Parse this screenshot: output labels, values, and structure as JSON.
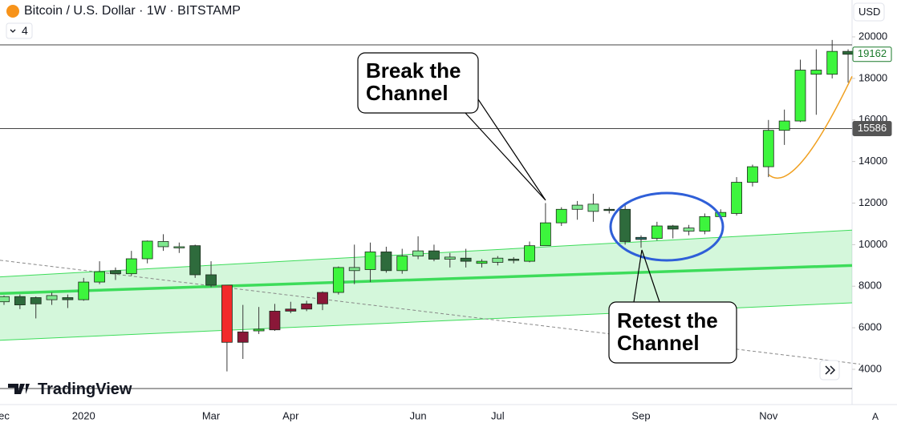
{
  "header": {
    "symbol": "Bitcoin / U.S. Dollar · 1W · BITSTAMP",
    "indicator_count": "4",
    "currency": "USD",
    "brand": "TradingView",
    "scale_mode": "A"
  },
  "chart_data": {
    "type": "candlestick",
    "title": "Bitcoin / U.S. Dollar · 1W · BITSTAMP",
    "categories": [
      "ec",
      null,
      null,
      null,
      null,
      "2020",
      null,
      null,
      null,
      null,
      null,
      null,
      null,
      "Mar",
      null,
      null,
      null,
      null,
      "Apr",
      null,
      null,
      null,
      null,
      null,
      null,
      null,
      "Jun",
      null,
      null,
      null,
      null,
      "Jul",
      null,
      null,
      null,
      null,
      null,
      null,
      null,
      null,
      "Sep",
      null,
      null,
      null,
      null,
      null,
      null,
      null,
      "Nov",
      null,
      null,
      null,
      null,
      null
    ],
    "open": [
      7250,
      7500,
      7450,
      7350,
      7450,
      7350,
      8200,
      8750,
      8600,
      9320,
      9900,
      9850,
      9950,
      8550,
      8050,
      5300,
      5850,
      5900,
      6800,
      6900,
      7150,
      7700,
      8750,
      8800,
      9650,
      8750,
      9450,
      9700,
      9300,
      9350,
      9100,
      9150,
      9300,
      9200,
      9950,
      11050,
      11700,
      11950,
      11700,
      11700,
      10250,
      10300,
      10900,
      10650,
      10650,
      11350,
      11500,
      13000,
      13750,
      15500,
      15950,
      18200,
      18200,
      19300
    ],
    "high": [
      7550,
      7600,
      7500,
      7700,
      7600,
      8400,
      9200,
      8900,
      9700,
      10200,
      10500,
      10100,
      10000,
      9200,
      8050,
      7100,
      7000,
      7150,
      7250,
      7300,
      7750,
      8950,
      10000,
      10100,
      9900,
      9800,
      10400,
      10000,
      9600,
      9800,
      9300,
      9450,
      9400,
      10150,
      12000,
      11800,
      12100,
      12450,
      11800,
      12000,
      10450,
      11100,
      10950,
      10950,
      11500,
      11700,
      13250,
      13850,
      16000,
      16500,
      18900,
      19400,
      19850,
      19400
    ],
    "low": [
      7100,
      6900,
      6450,
      7100,
      6950,
      7300,
      8100,
      8300,
      8500,
      9100,
      9700,
      9600,
      8400,
      7950,
      3900,
      4500,
      5700,
      5850,
      6700,
      6800,
      6850,
      7600,
      8100,
      8200,
      8650,
      8600,
      9300,
      9200,
      8900,
      8900,
      8900,
      9000,
      9100,
      9150,
      9950,
      10900,
      11200,
      11100,
      11500,
      10000,
      9850,
      10200,
      10300,
      10450,
      10500,
      11200,
      11400,
      12800,
      13250,
      14800,
      15900,
      16250,
      18000,
      17800
    ],
    "close": [
      7500,
      7100,
      7150,
      7550,
      7350,
      8200,
      8700,
      8600,
      9320,
      10170,
      10150,
      9900,
      8550,
      8050,
      5300,
      5800,
      5930,
      6800,
      6900,
      7150,
      7700,
      8900,
      8900,
      9650,
      8750,
      9450,
      9700,
      9300,
      9400,
      9200,
      9200,
      9350,
      9250,
      9950,
      11050,
      11700,
      11900,
      11600,
      11650,
      10150,
      10350,
      10900,
      10750,
      10800,
      11350,
      11550,
      13000,
      13750,
      15500,
      15950,
      18400,
      18400,
      19300,
      19162
    ],
    "colors": [
      "#7fe88f",
      "#2e6b3c",
      "#2e6b3c",
      "#7fe88f",
      "#2e6b3c",
      "#3df53d",
      "#3df53d",
      "#2e6b3c",
      "#3df53d",
      "#3df53d",
      "#7fe88f",
      "#7fe88f",
      "#2e6b3c",
      "#2e6b3c",
      "#f22b2b",
      "#8a1738",
      "#3df53d",
      "#8a1738",
      "#8a1738",
      "#8a1738",
      "#8a1738",
      "#3df53d",
      "#7fe88f",
      "#3df53d",
      "#2e6b3c",
      "#3df53d",
      "#7fe88f",
      "#2e6b3c",
      "#7fe88f",
      "#2e6b3c",
      "#3df53d",
      "#7fe88f",
      "#2e6b3c",
      "#3df53d",
      "#3df53d",
      "#3df53d",
      "#7fe88f",
      "#7fe88f",
      "#2e6b3c",
      "#2e6b3c",
      "#2e6b6b",
      "#3df53d",
      "#2e6b3c",
      "#7fe88f",
      "#3df53d",
      "#3df53d",
      "#3df53d",
      "#3df53d",
      "#3df53d",
      "#3df53d",
      "#3df53d",
      "#3df53d",
      "#3df53d",
      "#2e6b3c"
    ],
    "ylim": [
      3075,
      21773
    ],
    "yticks": [
      4000,
      6000,
      8000,
      10000,
      12000,
      14000,
      16000,
      18000,
      20000
    ],
    "channel": {
      "upper": [
        8450,
        10700
      ],
      "middle": [
        7650,
        9000
      ],
      "lower": [
        5400,
        7200
      ],
      "color": "#3ddc5a"
    },
    "trend_line": [
      9250,
      4250
    ],
    "top_line": 19615,
    "price_line": 15586,
    "last_price": 19162,
    "curve": [
      13370,
      12830,
      18100
    ],
    "annotations": [
      "Break the Channel",
      "Retest the Channel"
    ]
  }
}
